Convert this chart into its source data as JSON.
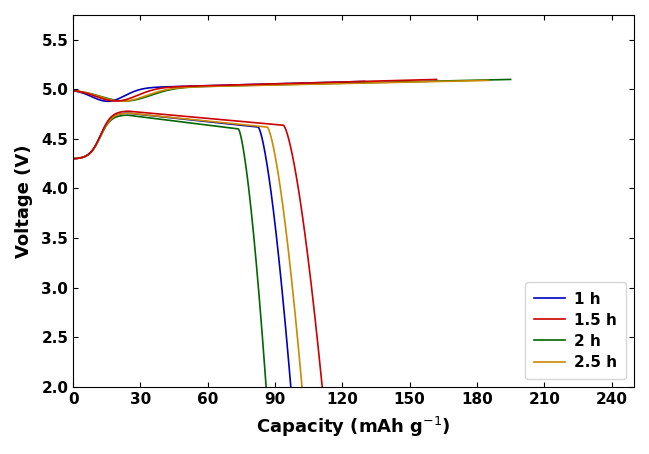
{
  "title": "",
  "xlabel": "Capacity (mAh g$^{-1}$)",
  "ylabel": "Voltage (V)",
  "xlim": [
    0,
    250
  ],
  "ylim": [
    2.0,
    5.75
  ],
  "xticks": [
    0,
    30,
    60,
    90,
    120,
    150,
    180,
    210,
    240
  ],
  "yticks": [
    2.0,
    2.5,
    3.0,
    3.5,
    4.0,
    4.5,
    5.0,
    5.5
  ],
  "legend_labels": [
    "1 h",
    "1.5 h",
    "2 h",
    "2.5 h"
  ],
  "colors": {
    "1h": "#0000bb",
    "1.5h": "#cc0000",
    "2h": "#006600",
    "2.5h": "#cc8800"
  },
  "background_color": "#ffffff",
  "figsize": [
    6.49,
    4.54
  ],
  "dpi": 100,
  "linewidth": 1.2
}
